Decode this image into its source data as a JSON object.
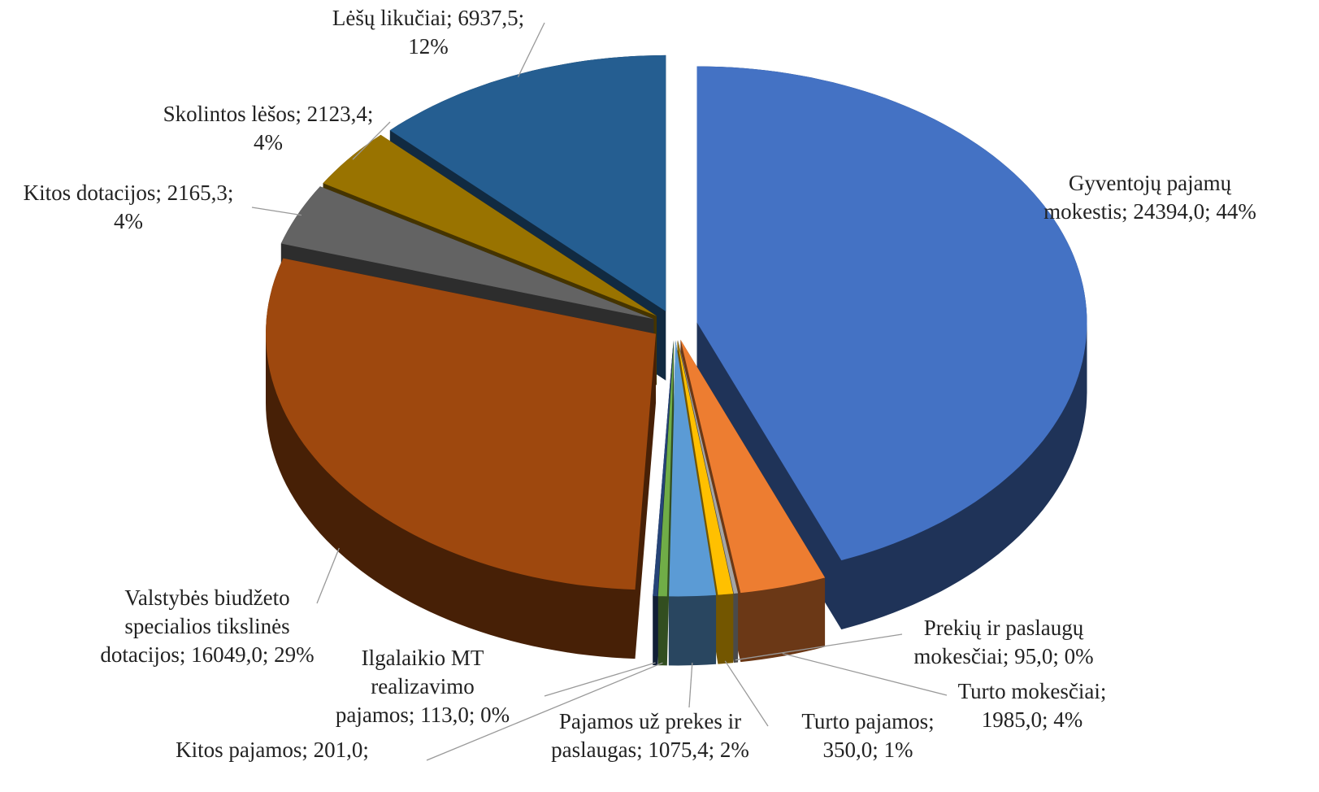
{
  "chart_data": {
    "type": "pie3d",
    "labels": [
      [
        "Gyventojų pajamų",
        "mokestis; 24394,0; 44%"
      ],
      [
        "Turto mokesčiai;",
        "1985,0; 4%"
      ],
      [
        "Prekių ir paslaugų",
        "mokesčiai; 95,0; 0%"
      ],
      [
        "Turto pajamos;",
        "350,0; 1%"
      ],
      [
        "Pajamos už prekes ir",
        "paslaugas; 1075,4; 2%"
      ],
      [
        "Kitos pajamos; 201,0;"
      ],
      [
        "Ilgalaikio MT",
        "realizavimo",
        "pajamos; 113,0; 0%"
      ],
      [
        "Valstybės biudžeto",
        "specialios tikslinės",
        "dotacijos; 16049,0; 29%"
      ],
      [
        "Kitos dotacijos; 2165,3;",
        "4%"
      ],
      [
        "Skolintos lėšos; 2123,4;",
        "4%"
      ],
      [
        "Lėšų likučiai; 6937,5;",
        "12%"
      ]
    ],
    "values": [
      24394.0,
      1985.0,
      95.0,
      350.0,
      1075.4,
      201.0,
      113.0,
      16049.0,
      2165.3,
      2123.4,
      6937.5
    ],
    "colors": [
      "#4472c4",
      "#ed7d31",
      "#a5a5a5",
      "#ffc000",
      "#5b9bd5",
      "#70ad47",
      "#264478",
      "#9e480e",
      "#636363",
      "#997300",
      "#255e91"
    ]
  }
}
